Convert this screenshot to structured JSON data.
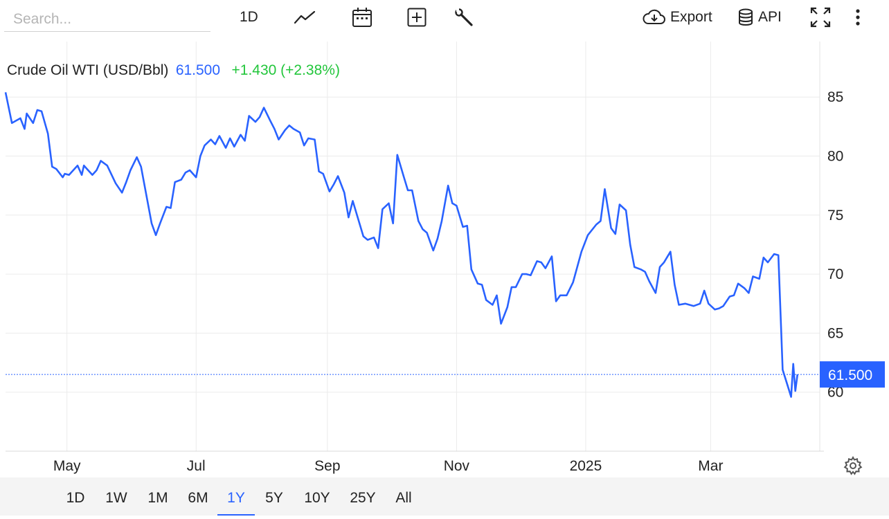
{
  "toolbar": {
    "search_placeholder": "Search...",
    "interval_label": "1D",
    "export_label": "Export",
    "api_label": "API",
    "icons": [
      "line-chart-icon",
      "calendar-icon",
      "add-compare-icon",
      "wrench-icon",
      "cloud-download-icon",
      "database-icon",
      "fullscreen-icon",
      "more-vertical-icon"
    ]
  },
  "legend": {
    "name": "Crude Oil WTI (USD/Bbl)",
    "price": "61.500",
    "change": "+1.430 (+2.38%)"
  },
  "price_tag": "61.500",
  "ranges": [
    {
      "label": "1D",
      "active": false
    },
    {
      "label": "1W",
      "active": false
    },
    {
      "label": "1M",
      "active": false
    },
    {
      "label": "6M",
      "active": false
    },
    {
      "label": "1Y",
      "active": true
    },
    {
      "label": "5Y",
      "active": false
    },
    {
      "label": "10Y",
      "active": false
    },
    {
      "label": "25Y",
      "active": false
    },
    {
      "label": "All",
      "active": false
    }
  ],
  "colors": {
    "line": "#2962ff",
    "price_tag_bg": "#2962ff",
    "change_positive": "#22c63b",
    "range_bar_bg": "#f4f4f4"
  },
  "chart_data": {
    "type": "line",
    "title": "Crude Oil WTI (USD/Bbl)",
    "xlabel": "",
    "ylabel": "",
    "y_axis_side": "right",
    "y_ticks": [
      60,
      65,
      70,
      75,
      80,
      85
    ],
    "ylim": [
      55,
      89
    ],
    "x_ticks": [
      {
        "label": "May",
        "date": "2024-05-01"
      },
      {
        "label": "Jul",
        "date": "2024-07-01"
      },
      {
        "label": "Sep",
        "date": "2024-09-01"
      },
      {
        "label": "Nov",
        "date": "2024-11-01"
      },
      {
        "label": "2025",
        "date": "2025-01-01"
      },
      {
        "label": "Mar",
        "date": "2025-03-01"
      }
    ],
    "xlim": [
      "2024-04-02",
      "2025-04-15"
    ],
    "last_value": 61.5,
    "grid": true,
    "series": [
      {
        "values": [
          [
            "2024-04-02",
            85.4
          ],
          [
            "2024-04-05",
            82.8
          ],
          [
            "2024-04-09",
            83.2
          ],
          [
            "2024-04-11",
            82.3
          ],
          [
            "2024-04-12",
            83.6
          ],
          [
            "2024-04-15",
            82.8
          ],
          [
            "2024-04-17",
            83.9
          ],
          [
            "2024-04-19",
            83.8
          ],
          [
            "2024-04-22",
            81.9
          ],
          [
            "2024-04-24",
            79.1
          ],
          [
            "2024-04-26",
            78.9
          ],
          [
            "2024-04-29",
            78.2
          ],
          [
            "2024-04-30",
            78.5
          ],
          [
            "2024-05-02",
            78.4
          ],
          [
            "2024-05-06",
            79.2
          ],
          [
            "2024-05-08",
            78.4
          ],
          [
            "2024-05-09",
            79.2
          ],
          [
            "2024-05-13",
            78.4
          ],
          [
            "2024-05-15",
            78.8
          ],
          [
            "2024-05-17",
            79.6
          ],
          [
            "2024-05-20",
            79.2
          ],
          [
            "2024-05-24",
            77.7
          ],
          [
            "2024-05-27",
            76.9
          ],
          [
            "2024-05-29",
            77.8
          ],
          [
            "2024-05-31",
            78.8
          ],
          [
            "2024-06-03",
            79.9
          ],
          [
            "2024-06-05",
            79.1
          ],
          [
            "2024-06-10",
            74.3
          ],
          [
            "2024-06-12",
            73.3
          ],
          [
            "2024-06-14",
            74.3
          ],
          [
            "2024-06-17",
            75.7
          ],
          [
            "2024-06-19",
            75.6
          ],
          [
            "2024-06-21",
            77.8
          ],
          [
            "2024-06-24",
            78.0
          ],
          [
            "2024-06-26",
            78.6
          ],
          [
            "2024-06-28",
            78.8
          ],
          [
            "2024-07-01",
            78.2
          ],
          [
            "2024-07-03",
            80.0
          ],
          [
            "2024-07-05",
            80.9
          ],
          [
            "2024-07-08",
            81.4
          ],
          [
            "2024-07-10",
            81.0
          ],
          [
            "2024-07-12",
            81.7
          ],
          [
            "2024-07-15",
            80.7
          ],
          [
            "2024-07-17",
            81.5
          ],
          [
            "2024-07-19",
            80.8
          ],
          [
            "2024-07-22",
            81.8
          ],
          [
            "2024-07-24",
            81.3
          ],
          [
            "2024-07-26",
            83.4
          ],
          [
            "2024-07-29",
            82.9
          ],
          [
            "2024-07-31",
            83.3
          ],
          [
            "2024-08-02",
            84.1
          ],
          [
            "2024-08-05",
            83.0
          ],
          [
            "2024-08-07",
            82.3
          ],
          [
            "2024-08-09",
            81.4
          ],
          [
            "2024-08-12",
            82.2
          ],
          [
            "2024-08-14",
            82.6
          ],
          [
            "2024-08-16",
            82.3
          ],
          [
            "2024-08-19",
            82.0
          ],
          [
            "2024-08-21",
            80.9
          ],
          [
            "2024-08-23",
            81.5
          ],
          [
            "2024-08-26",
            81.4
          ],
          [
            "2024-08-28",
            78.7
          ],
          [
            "2024-08-30",
            78.5
          ],
          [
            "2024-09-02",
            77.0
          ],
          [
            "2024-09-04",
            77.6
          ],
          [
            "2024-09-06",
            78.3
          ],
          [
            "2024-09-09",
            76.9
          ],
          [
            "2024-09-11",
            74.8
          ],
          [
            "2024-09-13",
            76.2
          ],
          [
            "2024-09-16",
            74.4
          ],
          [
            "2024-09-18",
            73.2
          ],
          [
            "2024-09-20",
            72.9
          ],
          [
            "2024-09-23",
            73.1
          ],
          [
            "2024-09-25",
            72.2
          ],
          [
            "2024-09-27",
            75.5
          ],
          [
            "2024-09-30",
            76.0
          ],
          [
            "2024-10-02",
            74.3
          ],
          [
            "2024-10-04",
            80.1
          ],
          [
            "2024-10-07",
            78.3
          ],
          [
            "2024-10-09",
            77.1
          ],
          [
            "2024-10-11",
            77.1
          ],
          [
            "2024-10-14",
            74.5
          ],
          [
            "2024-10-16",
            73.8
          ],
          [
            "2024-10-18",
            73.5
          ],
          [
            "2024-10-21",
            72.0
          ],
          [
            "2024-10-23",
            73.0
          ],
          [
            "2024-10-25",
            74.5
          ],
          [
            "2024-10-28",
            77.5
          ],
          [
            "2024-10-30",
            76.0
          ],
          [
            "2024-11-01",
            75.8
          ],
          [
            "2024-11-04",
            74.0
          ],
          [
            "2024-11-06",
            74.1
          ],
          [
            "2024-11-08",
            70.4
          ],
          [
            "2024-11-11",
            69.2
          ],
          [
            "2024-11-13",
            69.1
          ],
          [
            "2024-11-15",
            67.8
          ],
          [
            "2024-11-18",
            67.4
          ],
          [
            "2024-11-20",
            68.2
          ],
          [
            "2024-11-22",
            65.8
          ],
          [
            "2024-11-25",
            67.2
          ],
          [
            "2024-11-27",
            68.9
          ],
          [
            "2024-11-29",
            68.9
          ],
          [
            "2024-12-02",
            70.0
          ],
          [
            "2024-12-04",
            70.0
          ],
          [
            "2024-12-06",
            69.9
          ],
          [
            "2024-12-09",
            71.1
          ],
          [
            "2024-12-11",
            71.0
          ],
          [
            "2024-12-13",
            70.5
          ],
          [
            "2024-12-16",
            71.5
          ],
          [
            "2024-12-18",
            67.7
          ],
          [
            "2024-12-20",
            68.2
          ],
          [
            "2024-12-23",
            68.2
          ],
          [
            "2024-12-26",
            69.3
          ],
          [
            "2024-12-30",
            71.9
          ],
          [
            "2025-01-02",
            73.3
          ],
          [
            "2025-01-06",
            74.2
          ],
          [
            "2025-01-08",
            74.5
          ],
          [
            "2025-01-10",
            77.2
          ],
          [
            "2025-01-13",
            73.9
          ],
          [
            "2025-01-15",
            73.4
          ],
          [
            "2025-01-17",
            75.9
          ],
          [
            "2025-01-20",
            75.4
          ],
          [
            "2025-01-22",
            72.5
          ],
          [
            "2025-01-24",
            70.6
          ],
          [
            "2025-01-27",
            70.4
          ],
          [
            "2025-01-29",
            70.2
          ],
          [
            "2025-01-31",
            69.4
          ],
          [
            "2025-02-03",
            68.4
          ],
          [
            "2025-02-05",
            70.6
          ],
          [
            "2025-02-07",
            71.0
          ],
          [
            "2025-02-10",
            71.9
          ],
          [
            "2025-02-12",
            69.1
          ],
          [
            "2025-02-14",
            67.4
          ],
          [
            "2025-02-17",
            67.5
          ],
          [
            "2025-02-19",
            67.4
          ],
          [
            "2025-02-21",
            67.3
          ],
          [
            "2025-02-24",
            67.5
          ],
          [
            "2025-02-26",
            68.6
          ],
          [
            "2025-02-28",
            67.5
          ],
          [
            "2025-03-03",
            67.0
          ],
          [
            "2025-03-05",
            67.1
          ],
          [
            "2025-03-07",
            67.3
          ],
          [
            "2025-03-10",
            68.1
          ],
          [
            "2025-03-12",
            68.2
          ],
          [
            "2025-03-14",
            69.2
          ],
          [
            "2025-03-17",
            68.8
          ],
          [
            "2025-03-19",
            68.4
          ],
          [
            "2025-03-21",
            69.8
          ],
          [
            "2025-03-24",
            69.6
          ],
          [
            "2025-03-26",
            71.4
          ],
          [
            "2025-03-28",
            71.0
          ],
          [
            "2025-03-31",
            71.7
          ],
          [
            "2025-04-02",
            71.6
          ],
          [
            "2025-04-04",
            61.9
          ],
          [
            "2025-04-07",
            60.2
          ],
          [
            "2025-04-08",
            59.6
          ],
          [
            "2025-04-09",
            62.4
          ],
          [
            "2025-04-10",
            60.1
          ],
          [
            "2025-04-11",
            61.5
          ]
        ]
      }
    ]
  }
}
